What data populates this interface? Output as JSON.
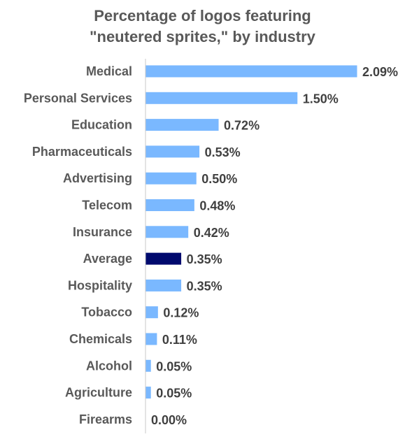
{
  "chart_data": {
    "type": "bar",
    "orientation": "horizontal",
    "title_lines": [
      "Percentage of logos featuring",
      "\"neutered sprites,\" by industry"
    ],
    "categories": [
      "Medical",
      "Personal Services",
      "Education",
      "Pharmaceuticals",
      "Advertising",
      "Telecom",
      "Insurance",
      "Average",
      "Hospitality",
      "Tobacco",
      "Chemicals",
      "Alcohol",
      "Agriculture",
      "Firearms"
    ],
    "values": [
      2.09,
      1.5,
      0.72,
      0.53,
      0.5,
      0.48,
      0.42,
      0.35,
      0.35,
      0.12,
      0.11,
      0.05,
      0.05,
      0.0
    ],
    "value_labels": [
      "2.09%",
      "1.50%",
      "0.72%",
      "0.53%",
      "0.50%",
      "0.48%",
      "0.42%",
      "0.35%",
      "0.35%",
      "0.12%",
      "0.11%",
      "0.05%",
      "0.05%",
      "0.00%"
    ],
    "highlight_category": "Average",
    "colors": {
      "bar": "#7ab8ff",
      "highlight": "#000a6e",
      "axis": "#c8c8c8",
      "category_text": "#595959",
      "value_text": "#404040"
    },
    "xlim": [
      0,
      2.09
    ],
    "grid": false,
    "legend": "none"
  }
}
